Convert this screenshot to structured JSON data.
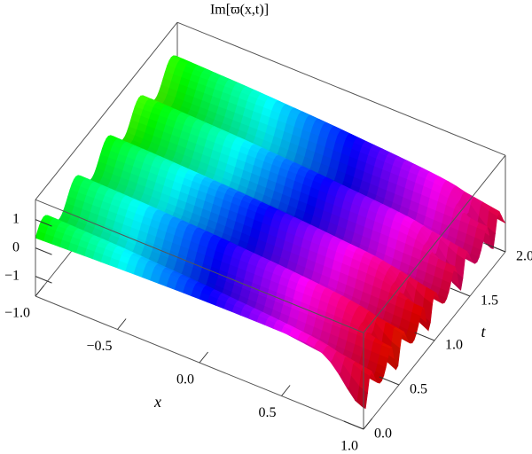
{
  "chart_data": {
    "type": "surface3d",
    "title": "Im[ϖ(x,t)]",
    "xlabel": "x",
    "ylabel": "t",
    "xlim": [
      -1,
      1
    ],
    "ylim": [
      0,
      2
    ],
    "zlim": [
      -1.7,
      1.7
    ],
    "xticks": [
      {
        "value": -1,
        "label": "−1.0"
      },
      {
        "value": -0.5,
        "label": "−0.5"
      },
      {
        "value": 0,
        "label": "0.0"
      },
      {
        "value": 0.5,
        "label": "0.5"
      },
      {
        "value": 1,
        "label": "1.0"
      }
    ],
    "yticks": [
      {
        "value": 0,
        "label": "0.0"
      },
      {
        "value": 0.5,
        "label": "0.5"
      },
      {
        "value": 1,
        "label": "1.0"
      },
      {
        "value": 1.5,
        "label": "1.5"
      },
      {
        "value": 2,
        "label": "2.0"
      }
    ],
    "zticks": [
      {
        "value": -1,
        "label": "−1"
      },
      0,
      1
    ]
  }
}
